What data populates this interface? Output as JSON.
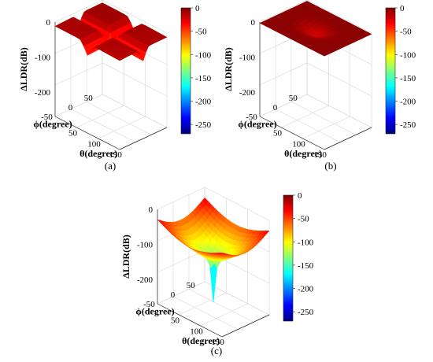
{
  "captions": [
    "(a)",
    "(b)",
    "(c)"
  ],
  "colors": {
    "colormap": [
      "#00007f",
      "#0000ff",
      "#007fff",
      "#00ffff",
      "#7fff7f",
      "#ffff00",
      "#ff7f00",
      "#ff0000",
      "#7f0000"
    ]
  },
  "chart_data": [
    {
      "type": "surface",
      "panel": "(a)",
      "zlabel": "ΔLDR(dB)",
      "ylabel": "ϕ(degree)",
      "xlabel": "θ(degree)",
      "x_ticks": [
        "50",
        "100",
        "150"
      ],
      "y_ticks": [
        "50",
        "0",
        "-50"
      ],
      "z_ticks": [
        "0",
        "-100",
        "-200"
      ],
      "zlim": [
        -270,
        0
      ],
      "colorbar_ticks": [
        "0",
        "-50",
        "-100",
        "-150",
        "-200",
        "-250"
      ],
      "colorbar_range": [
        -270,
        0
      ],
      "surface_range_approx": [
        -45,
        0
      ],
      "surface_description_values": {
        "max": 0,
        "min_valley": -45
      }
    },
    {
      "type": "surface",
      "panel": "(b)",
      "zlabel": "ΔLDR(dB)",
      "ylabel": "ϕ(degree)",
      "xlabel": "θ(degree)",
      "x_ticks": [
        "50",
        "100",
        "150"
      ],
      "y_ticks": [
        "50",
        "0",
        "-50"
      ],
      "z_ticks": [
        "0",
        "-100",
        "-200"
      ],
      "zlim": [
        -270,
        0
      ],
      "colorbar_ticks": [
        "0",
        "-50",
        "-100",
        "-150",
        "-200",
        "-250"
      ],
      "colorbar_range": [
        -270,
        0
      ],
      "surface_range_approx": [
        -25,
        0
      ]
    },
    {
      "type": "surface",
      "panel": "(c)",
      "zlabel": "ΔLDR(dB)",
      "ylabel": "ϕ(degree)",
      "xlabel": "θ(degree)",
      "x_ticks": [
        "50",
        "100",
        "150"
      ],
      "y_ticks": [
        "50",
        "0",
        "-50"
      ],
      "z_ticks": [
        "0",
        "-100",
        "-200"
      ],
      "zlim": [
        -270,
        0
      ],
      "colorbar_ticks": [
        "0",
        "-50",
        "-100",
        "-150",
        "-200",
        "-250"
      ],
      "colorbar_range": [
        -270,
        0
      ],
      "surface_range_approx": [
        -250,
        0
      ]
    }
  ]
}
